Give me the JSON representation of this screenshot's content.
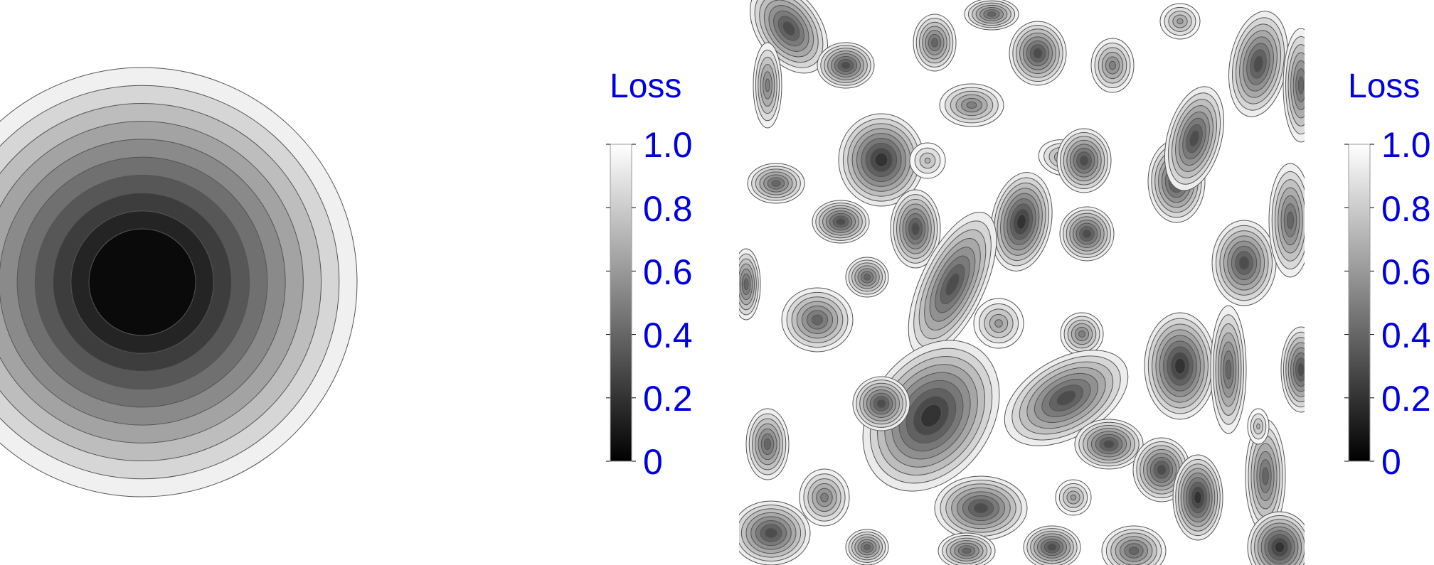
{
  "chart_data": [
    {
      "type": "heatmap",
      "subtype": "filled-contour",
      "surface": "single-basin",
      "colormap": "grayscale",
      "colormap_colors": [
        "#000000",
        "#ffffff"
      ],
      "levels": [
        0,
        0.1,
        0.2,
        0.3,
        0.4,
        0.5,
        0.6,
        0.7,
        0.8,
        0.9,
        1.0
      ],
      "colorbar": {
        "title": "Loss",
        "ticks": [
          "0",
          "0.2",
          "0.4",
          "0.6",
          "0.8",
          "1.0"
        ],
        "tick_values": [
          0,
          0.2,
          0.4,
          0.6,
          0.8,
          1.0
        ],
        "range": [
          0,
          1.0
        ],
        "label_color": "#0000e0"
      }
    },
    {
      "type": "heatmap",
      "subtype": "filled-contour",
      "surface": "many-local-minima",
      "colormap": "grayscale",
      "colormap_colors": [
        "#000000",
        "#ffffff"
      ],
      "levels": [
        0,
        0.1,
        0.2,
        0.3,
        0.4,
        0.5,
        0.6,
        0.7,
        0.8,
        0.9,
        1.0
      ],
      "colorbar": {
        "title": "Loss",
        "ticks": [
          "0",
          "0.2",
          "0.4",
          "0.6",
          "0.8",
          "1.0"
        ],
        "tick_values": [
          0,
          0.2,
          0.4,
          0.6,
          0.8,
          1.0
        ],
        "range": [
          0,
          1.0
        ],
        "label_color": "#0000e0"
      }
    }
  ]
}
